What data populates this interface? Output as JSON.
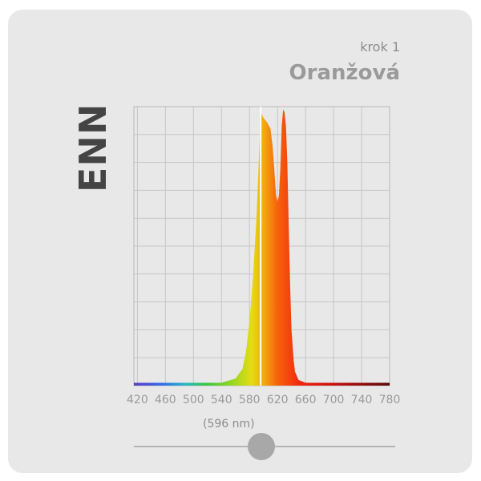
{
  "brand": "ENN",
  "step_label": "krok 1",
  "mode_label": "Oranžová",
  "wavelength_readout": "(596 nm)",
  "slider": {
    "value_nm": 596,
    "min_nm": 420,
    "max_nm": 780
  },
  "colors": {
    "card_background": "#e8e8e8",
    "marker_line": "#ffffff",
    "slider_thumb": "#a8a8a8"
  },
  "chart_data": {
    "type": "area",
    "title": "",
    "xlabel": "",
    "ylabel": "",
    "xlim": [
      415,
      780
    ],
    "ylim": [
      0,
      1
    ],
    "x_ticks": [
      420,
      460,
      500,
      540,
      580,
      620,
      660,
      700,
      740,
      780
    ],
    "x_tick_labels": [
      "420",
      "460",
      "500",
      "540",
      "580",
      "620",
      "660",
      "700",
      "740",
      "780"
    ],
    "grid": true,
    "fill": "spectral wavelength colour",
    "marker_x": 596,
    "x": [
      415,
      450,
      500,
      540,
      560,
      570,
      575,
      580,
      585,
      590,
      594,
      596,
      598,
      600,
      603,
      606,
      610,
      613,
      616,
      618,
      620,
      622,
      624,
      626,
      628,
      630,
      632,
      634,
      636,
      638,
      640,
      643,
      645,
      650,
      660,
      700,
      780
    ],
    "values": [
      0.01,
      0.01,
      0.01,
      0.01,
      0.025,
      0.06,
      0.12,
      0.23,
      0.39,
      0.6,
      0.84,
      0.98,
      0.97,
      0.96,
      0.95,
      0.94,
      0.92,
      0.86,
      0.75,
      0.68,
      0.66,
      0.68,
      0.78,
      0.93,
      0.99,
      0.98,
      0.93,
      0.8,
      0.58,
      0.36,
      0.2,
      0.09,
      0.05,
      0.02,
      0.01,
      0.01,
      0.01
    ]
  }
}
